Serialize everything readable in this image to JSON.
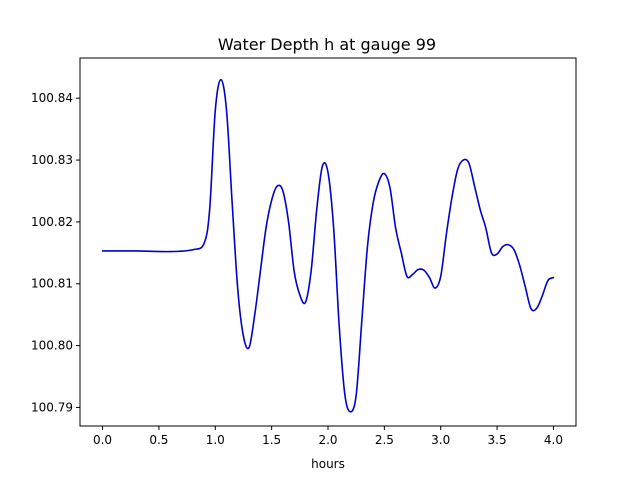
{
  "chart_data": {
    "type": "line",
    "title": "Water Depth h at gauge 99",
    "xlabel": "hours",
    "ylabel": "",
    "xlim": [
      -0.2,
      4.2
    ],
    "ylim": [
      100.787,
      100.8465
    ],
    "x_ticks": [
      0.0,
      0.5,
      1.0,
      1.5,
      2.0,
      2.5,
      3.0,
      3.5,
      4.0
    ],
    "x_tick_labels": [
      "0.0",
      "0.5",
      "1.0",
      "1.5",
      "2.0",
      "2.5",
      "3.0",
      "3.5",
      "4.0"
    ],
    "y_ticks": [
      100.79,
      100.8,
      100.81,
      100.82,
      100.83,
      100.84
    ],
    "y_tick_labels": [
      "100.79",
      "100.80",
      "100.81",
      "100.82",
      "100.83",
      "100.84"
    ],
    "grid": false,
    "legend": "none",
    "series": [
      {
        "color": "#0000cc",
        "points": [
          [
            0.0,
            100.8153
          ],
          [
            0.3,
            100.8153
          ],
          [
            0.6,
            100.8152
          ],
          [
            0.8,
            100.8155
          ],
          [
            0.9,
            100.8165
          ],
          [
            0.95,
            100.822
          ],
          [
            1.0,
            100.838
          ],
          [
            1.05,
            100.843
          ],
          [
            1.1,
            100.838
          ],
          [
            1.15,
            100.823
          ],
          [
            1.2,
            100.809
          ],
          [
            1.25,
            100.8015
          ],
          [
            1.3,
            100.7997
          ],
          [
            1.35,
            100.805
          ],
          [
            1.4,
            100.812
          ],
          [
            1.45,
            100.819
          ],
          [
            1.5,
            100.8235
          ],
          [
            1.55,
            100.8258
          ],
          [
            1.6,
            100.825
          ],
          [
            1.65,
            100.82
          ],
          [
            1.7,
            100.812
          ],
          [
            1.75,
            100.8082
          ],
          [
            1.8,
            100.807
          ],
          [
            1.85,
            100.812
          ],
          [
            1.9,
            100.822
          ],
          [
            1.95,
            100.829
          ],
          [
            2.0,
            100.828
          ],
          [
            2.05,
            100.819
          ],
          [
            2.1,
            100.803
          ],
          [
            2.15,
            100.792
          ],
          [
            2.2,
            100.7893
          ],
          [
            2.25,
            100.792
          ],
          [
            2.3,
            100.804
          ],
          [
            2.35,
            100.816
          ],
          [
            2.4,
            100.823
          ],
          [
            2.45,
            100.8265
          ],
          [
            2.5,
            100.8278
          ],
          [
            2.55,
            100.8255
          ],
          [
            2.6,
            100.819
          ],
          [
            2.65,
            100.815
          ],
          [
            2.7,
            100.8112
          ],
          [
            2.75,
            100.8115
          ],
          [
            2.8,
            100.8123
          ],
          [
            2.85,
            100.8122
          ],
          [
            2.9,
            100.811
          ],
          [
            2.95,
            100.8093
          ],
          [
            3.0,
            100.8112
          ],
          [
            3.05,
            100.818
          ],
          [
            3.1,
            100.824
          ],
          [
            3.15,
            100.8285
          ],
          [
            3.2,
            100.83
          ],
          [
            3.25,
            100.8295
          ],
          [
            3.3,
            100.8258
          ],
          [
            3.35,
            100.822
          ],
          [
            3.4,
            100.819
          ],
          [
            3.45,
            100.815
          ],
          [
            3.5,
            100.8148
          ],
          [
            3.55,
            100.816
          ],
          [
            3.6,
            100.8163
          ],
          [
            3.65,
            100.8155
          ],
          [
            3.7,
            100.813
          ],
          [
            3.75,
            100.8095
          ],
          [
            3.8,
            100.806
          ],
          [
            3.85,
            100.806
          ],
          [
            3.9,
            100.808
          ],
          [
            3.95,
            100.8105
          ],
          [
            4.0,
            100.811
          ]
        ]
      }
    ]
  }
}
